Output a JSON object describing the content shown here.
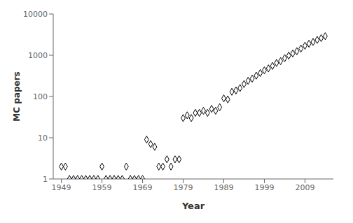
{
  "chart_data": {
    "type": "scatter",
    "xlabel": "Year",
    "ylabel": "MC  papers",
    "x": [
      1949,
      1950,
      1951,
      1952,
      1953,
      1954,
      1955,
      1956,
      1957,
      1958,
      1959,
      1960,
      1961,
      1962,
      1963,
      1964,
      1965,
      1966,
      1967,
      1968,
      1969,
      1970,
      1971,
      1972,
      1973,
      1974,
      1975,
      1976,
      1977,
      1978,
      1979,
      1980,
      1981,
      1982,
      1983,
      1984,
      1985,
      1986,
      1987,
      1988,
      1989,
      1990,
      1991,
      1992,
      1993,
      1994,
      1995,
      1996,
      1997,
      1998,
      1999,
      2000,
      2001,
      2002,
      2003,
      2004,
      2005,
      2006,
      2007,
      2008,
      2009,
      2010,
      2011,
      2012,
      2013,
      2014
    ],
    "values": [
      2,
      2,
      1,
      1,
      1,
      1,
      1,
      1,
      1,
      1,
      2,
      1,
      1,
      1,
      1,
      1,
      2,
      1,
      1,
      1,
      1,
      9,
      7,
      6,
      2,
      2,
      3,
      2,
      3,
      3,
      30,
      35,
      30,
      40,
      40,
      45,
      40,
      50,
      45,
      55,
      90,
      85,
      130,
      140,
      160,
      200,
      240,
      270,
      320,
      370,
      430,
      480,
      550,
      650,
      720,
      850,
      980,
      1100,
      1250,
      1450,
      1700,
      1900,
      2100,
      2350,
      2600,
      2900
    ],
    "color": "#000000",
    "marker": "diamond",
    "log": "y",
    "xlim": [
      1947,
      2016
    ],
    "xticks": [
      1949,
      1959,
      1969,
      1979,
      1989,
      1999,
      2009
    ],
    "ylim": [
      1,
      10000
    ],
    "yticks": [
      1,
      10,
      100,
      1000,
      10000
    ]
  }
}
